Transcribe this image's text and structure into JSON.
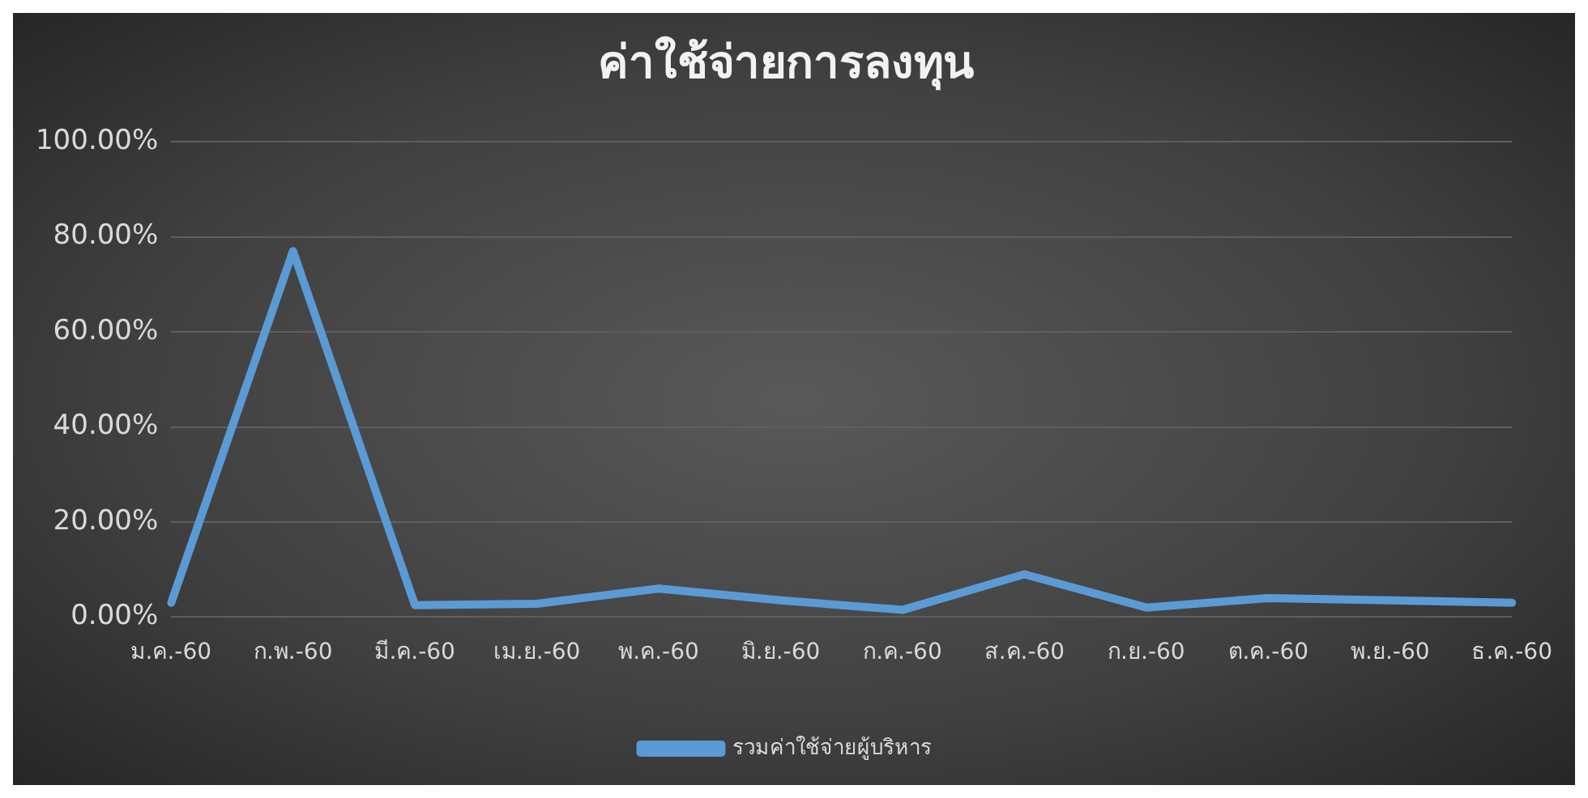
{
  "chart_data": {
    "type": "line",
    "title": "ค่าใช้จ่ายการลงทุน",
    "categories": [
      "ม.ค.-60",
      "ก.พ.-60",
      "มี.ค.-60",
      "เม.ย.-60",
      "พ.ค.-60",
      "มิ.ย.-60",
      "ก.ค.-60",
      "ส.ค.-60",
      "ก.ย.-60",
      "ต.ค.-60",
      "พ.ย.-60",
      "ธ.ค.-60"
    ],
    "series": [
      {
        "name": "รวมค่าใช้จ่ายผู้บริหาร",
        "color": "#5b9bd5",
        "values": [
          3,
          77,
          2.5,
          2.8,
          6,
          3.5,
          1.5,
          9,
          2,
          4,
          3.5,
          3
        ]
      }
    ],
    "ylim": [
      0,
      100
    ],
    "yticks": [
      {
        "value": 0,
        "label": "0.00%"
      },
      {
        "value": 20,
        "label": "20.00%"
      },
      {
        "value": 40,
        "label": "40.00%"
      },
      {
        "value": 60,
        "label": "60.00%"
      },
      {
        "value": 80,
        "label": "80.00%"
      },
      {
        "value": 100,
        "label": "100.00%"
      }
    ],
    "grid": "y",
    "legend": "bottom",
    "marker": "none",
    "line_style": "solid"
  }
}
